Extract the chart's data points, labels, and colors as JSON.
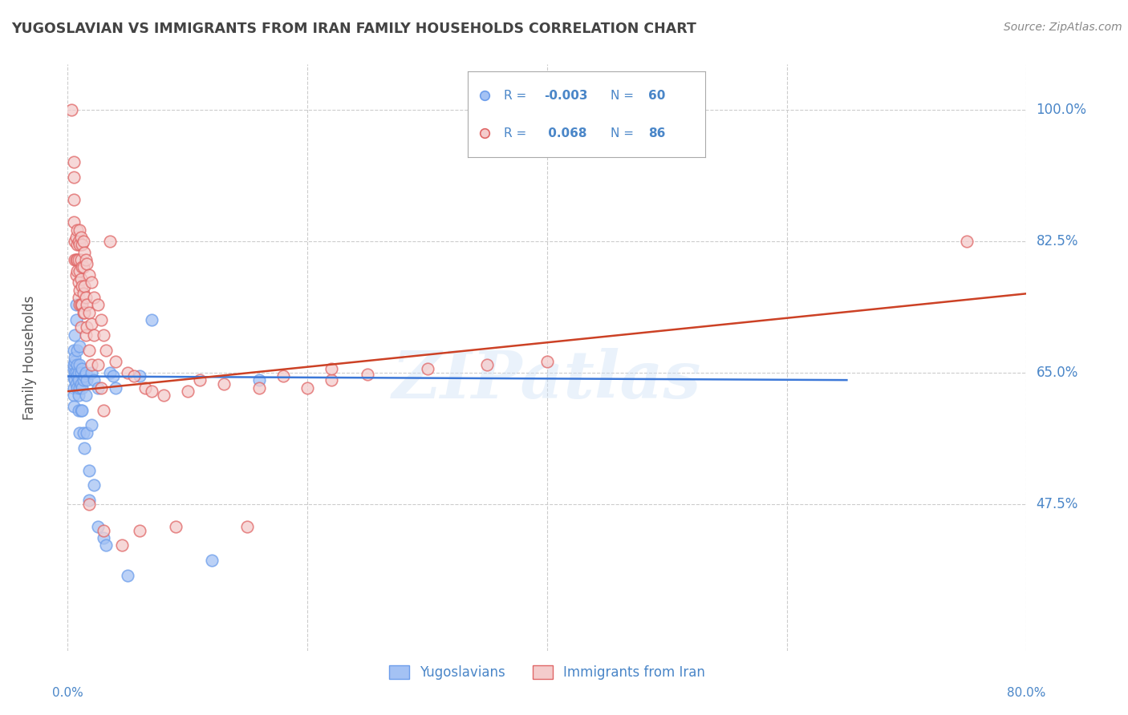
{
  "title": "YUGOSLAVIAN VS IMMIGRANTS FROM IRAN FAMILY HOUSEHOLDS CORRELATION CHART",
  "source": "Source: ZipAtlas.com",
  "ylabel": "Family Households",
  "ytick_labels": [
    "47.5%",
    "65.0%",
    "82.5%",
    "100.0%"
  ],
  "ytick_vals": [
    47.5,
    65.0,
    82.5,
    100.0
  ],
  "xmin": 0.0,
  "xmax": 80.0,
  "ymin": 28.0,
  "ymax": 106.0,
  "legend_blue_R": "-0.003",
  "legend_blue_N": "60",
  "legend_pink_R": "0.068",
  "legend_pink_N": "86",
  "watermark": "ZIPatlas",
  "blue_color": "#a4c2f4",
  "pink_color": "#f4cccc",
  "blue_edge_color": "#6d9eeb",
  "pink_edge_color": "#e06666",
  "blue_line_color": "#3c78d8",
  "pink_line_color": "#cc4125",
  "axis_label_color": "#4a86c8",
  "title_color": "#434343",
  "source_color": "#888888",
  "grid_color": "#cccccc",
  "background_color": "#ffffff",
  "blue_scatter_x": [
    0.5,
    0.5,
    0.5,
    0.5,
    0.5,
    0.5,
    0.5,
    0.6,
    0.6,
    0.6,
    0.6,
    0.6,
    0.7,
    0.7,
    0.7,
    0.7,
    0.8,
    0.8,
    0.8,
    0.8,
    0.9,
    0.9,
    0.9,
    0.9,
    1.0,
    1.0,
    1.0,
    1.0,
    1.1,
    1.1,
    1.1,
    1.2,
    1.2,
    1.2,
    1.3,
    1.3,
    1.4,
    1.4,
    1.5,
    1.5,
    1.6,
    1.6,
    1.8,
    1.8,
    2.0,
    2.0,
    2.2,
    2.2,
    2.5,
    2.5,
    3.0,
    3.2,
    3.5,
    3.8,
    4.0,
    5.0,
    6.0,
    7.0,
    12.0,
    16.0
  ],
  "blue_scatter_y": [
    64.3,
    63.0,
    65.5,
    66.0,
    62.0,
    60.5,
    68.0,
    65.0,
    64.0,
    66.5,
    70.0,
    67.0,
    63.5,
    65.0,
    72.0,
    74.0,
    64.5,
    63.0,
    66.0,
    68.0,
    65.0,
    62.0,
    64.0,
    60.0,
    66.0,
    63.0,
    68.5,
    57.0,
    65.0,
    63.5,
    60.0,
    65.5,
    63.0,
    60.0,
    64.0,
    57.0,
    64.5,
    55.0,
    65.0,
    62.0,
    64.0,
    57.0,
    52.0,
    48.0,
    65.0,
    58.0,
    64.0,
    50.0,
    63.0,
    44.5,
    43.0,
    42.0,
    65.0,
    64.5,
    63.0,
    38.0,
    64.5,
    72.0,
    40.0,
    64.0
  ],
  "pink_scatter_x": [
    0.3,
    0.5,
    0.5,
    0.5,
    0.6,
    0.6,
    0.7,
    0.7,
    0.7,
    0.8,
    0.8,
    0.8,
    0.8,
    0.9,
    0.9,
    0.9,
    0.9,
    1.0,
    1.0,
    1.0,
    1.0,
    1.0,
    1.1,
    1.1,
    1.1,
    1.1,
    1.1,
    1.2,
    1.2,
    1.2,
    1.2,
    1.3,
    1.3,
    1.3,
    1.3,
    1.4,
    1.4,
    1.4,
    1.5,
    1.5,
    1.5,
    1.6,
    1.6,
    1.6,
    1.8,
    1.8,
    1.8,
    1.8,
    2.0,
    2.0,
    2.0,
    2.2,
    2.2,
    2.5,
    2.5,
    2.8,
    2.8,
    3.0,
    3.0,
    3.0,
    3.2,
    3.5,
    4.0,
    4.5,
    5.0,
    5.5,
    6.0,
    6.5,
    7.0,
    8.0,
    9.0,
    10.0,
    11.0,
    13.0,
    15.0,
    16.0,
    18.0,
    20.0,
    22.0,
    25.0,
    30.0,
    35.0,
    40.0,
    75.0,
    0.5,
    22.0
  ],
  "pink_scatter_y": [
    100.0,
    91.0,
    88.0,
    85.0,
    82.5,
    80.0,
    83.0,
    80.0,
    78.0,
    84.0,
    82.0,
    80.0,
    78.5,
    82.5,
    80.0,
    77.0,
    75.0,
    84.0,
    82.0,
    78.5,
    76.0,
    74.0,
    83.0,
    80.0,
    77.5,
    74.0,
    71.0,
    82.0,
    79.0,
    76.5,
    74.0,
    82.5,
    79.0,
    75.5,
    73.0,
    81.0,
    76.5,
    73.0,
    80.0,
    75.0,
    70.0,
    79.5,
    74.0,
    71.0,
    78.0,
    73.0,
    68.0,
    47.5,
    77.0,
    71.5,
    66.0,
    75.0,
    70.0,
    74.0,
    66.0,
    72.0,
    63.0,
    70.0,
    60.0,
    44.0,
    68.0,
    82.5,
    66.5,
    42.0,
    65.0,
    64.5,
    44.0,
    63.0,
    62.5,
    62.0,
    44.5,
    62.5,
    64.0,
    63.5,
    44.5,
    63.0,
    64.5,
    63.0,
    64.0,
    64.8,
    65.5,
    66.0,
    66.5,
    82.5,
    93.0,
    65.5
  ],
  "blue_trend_x": [
    0.0,
    65.0
  ],
  "blue_trend_y": [
    64.5,
    64.0
  ],
  "pink_trend_x": [
    0.0,
    80.0
  ],
  "pink_trend_y": [
    62.5,
    75.5
  ]
}
